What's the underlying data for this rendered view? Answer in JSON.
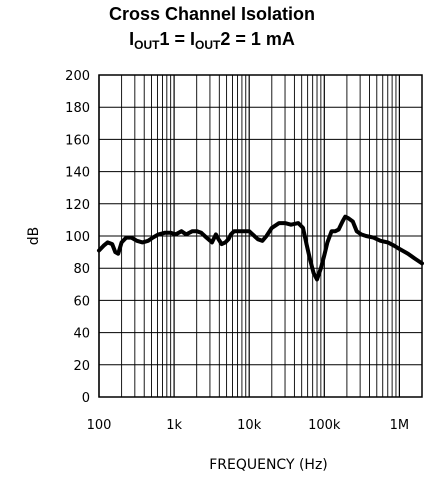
{
  "title": "Cross Channel Isolation",
  "subtitle": {
    "i1": "I",
    "sub1": "OUT",
    "mid": "1 = ",
    "i2": "I",
    "sub2": "OUT",
    "tail": "2 = 1 mA"
  },
  "chart_data": {
    "type": "line",
    "xlabel": "FREQUENCY (Hz)",
    "ylabel": "dB",
    "xscale": "log",
    "xlim": [
      100,
      2000000
    ],
    "ylim": [
      0,
      200
    ],
    "x_ticks": [
      100,
      1000,
      10000,
      100000,
      1000000
    ],
    "x_tick_labels": [
      "100",
      "1k",
      "10k",
      "100k",
      "1M"
    ],
    "y_ticks": [
      0,
      20,
      40,
      60,
      80,
      100,
      120,
      140,
      160,
      180,
      200
    ],
    "y_tick_labels": [
      "0",
      "20",
      "40",
      "60",
      "80",
      "100",
      "120",
      "140",
      "160",
      "180",
      "200"
    ],
    "grid": true,
    "line_color": "#000000",
    "series": [
      {
        "x": [
          100,
          115,
          130,
          150,
          165,
          180,
          200,
          230,
          270,
          320,
          380,
          450,
          520,
          620,
          750,
          900,
          1050,
          1250,
          1450,
          1750,
          2000,
          2300,
          2700,
          3200,
          3600,
          3900,
          4300,
          4800,
          5300,
          5700,
          6300,
          7100,
          8000,
          10000,
          13000,
          15000,
          17000,
          20000,
          25000,
          30000,
          36000,
          45000,
          52000,
          58000,
          65000,
          72000,
          80000,
          90000,
          100000,
          110000,
          125000,
          140000,
          155000,
          175000,
          190000,
          210000,
          240000,
          270000,
          310000,
          360000,
          450000,
          560000,
          700000,
          850000,
          1000000,
          1300000,
          1600000,
          2000000
        ],
        "y": [
          91,
          94,
          96,
          95,
          90,
          89,
          96,
          99,
          99,
          97,
          96,
          97,
          99,
          101,
          102,
          102,
          101,
          103,
          101,
          103,
          103,
          102,
          99,
          96,
          101,
          98,
          95,
          96,
          98,
          101,
          103,
          103,
          103,
          103,
          98,
          97,
          100,
          105,
          108,
          108,
          107,
          108,
          105,
          95,
          85,
          77,
          73,
          80,
          88,
          96,
          103,
          103,
          104,
          109,
          112,
          111,
          109,
          103,
          101,
          100,
          99,
          97,
          96,
          94,
          92,
          89,
          86,
          83
        ]
      }
    ]
  }
}
